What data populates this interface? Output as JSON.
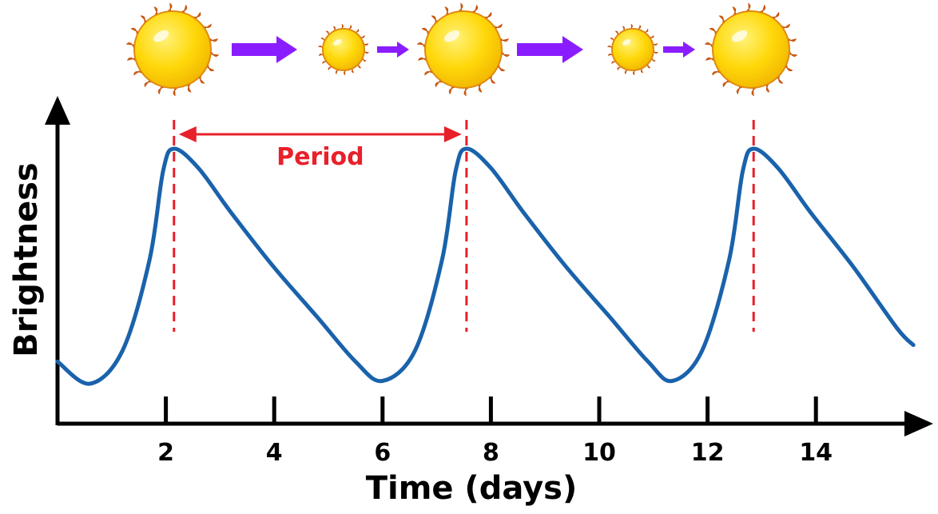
{
  "chart_data": {
    "type": "line",
    "xlabel": "Time (days)",
    "ylabel": "Brightness",
    "x_ticks": [
      2,
      4,
      6,
      8,
      10,
      12,
      14
    ],
    "xlim": [
      0,
      16
    ],
    "ylim": [
      0,
      1
    ],
    "grid": false,
    "y_tick_labels_shown": false,
    "series": [
      {
        "color": "#1a62ab",
        "points": [
          [
            0.0,
            0.18
          ],
          [
            0.6,
            0.1
          ],
          [
            1.2,
            0.22
          ],
          [
            1.7,
            0.55
          ],
          [
            1.95,
            0.87
          ],
          [
            2.15,
            0.95
          ],
          [
            2.6,
            0.88
          ],
          [
            3.2,
            0.72
          ],
          [
            4.0,
            0.52
          ],
          [
            4.8,
            0.34
          ],
          [
            5.5,
            0.18
          ],
          [
            6.0,
            0.11
          ],
          [
            6.6,
            0.22
          ],
          [
            7.1,
            0.55
          ],
          [
            7.35,
            0.87
          ],
          [
            7.55,
            0.95
          ],
          [
            8.0,
            0.88
          ],
          [
            8.6,
            0.72
          ],
          [
            9.4,
            0.52
          ],
          [
            10.2,
            0.34
          ],
          [
            10.9,
            0.18
          ],
          [
            11.35,
            0.11
          ],
          [
            11.9,
            0.22
          ],
          [
            12.4,
            0.55
          ],
          [
            12.65,
            0.87
          ],
          [
            12.85,
            0.95
          ],
          [
            13.3,
            0.88
          ],
          [
            13.9,
            0.72
          ],
          [
            14.7,
            0.52
          ],
          [
            15.5,
            0.3
          ],
          [
            15.8,
            0.24
          ]
        ]
      }
    ],
    "peaks_x": [
      2.15,
      7.55,
      12.85
    ],
    "annotations": {
      "period_label": "Period",
      "period_from_x": 2.15,
      "period_to_x": 7.55,
      "color": "#e8202a"
    },
    "star_sequence": [
      {
        "size": "large"
      },
      {
        "arrow": "large"
      },
      {
        "size": "small"
      },
      {
        "arrow": "small"
      },
      {
        "size": "large"
      },
      {
        "arrow": "large"
      },
      {
        "size": "small"
      },
      {
        "arrow": "small"
      },
      {
        "size": "large"
      }
    ],
    "colors": {
      "axis": "#000000",
      "curve": "#1a62ab",
      "period": "#e8202a",
      "arrow": "#8a1dff",
      "star_fill": "#ffd80a",
      "star_edge": "#e56d10"
    }
  }
}
